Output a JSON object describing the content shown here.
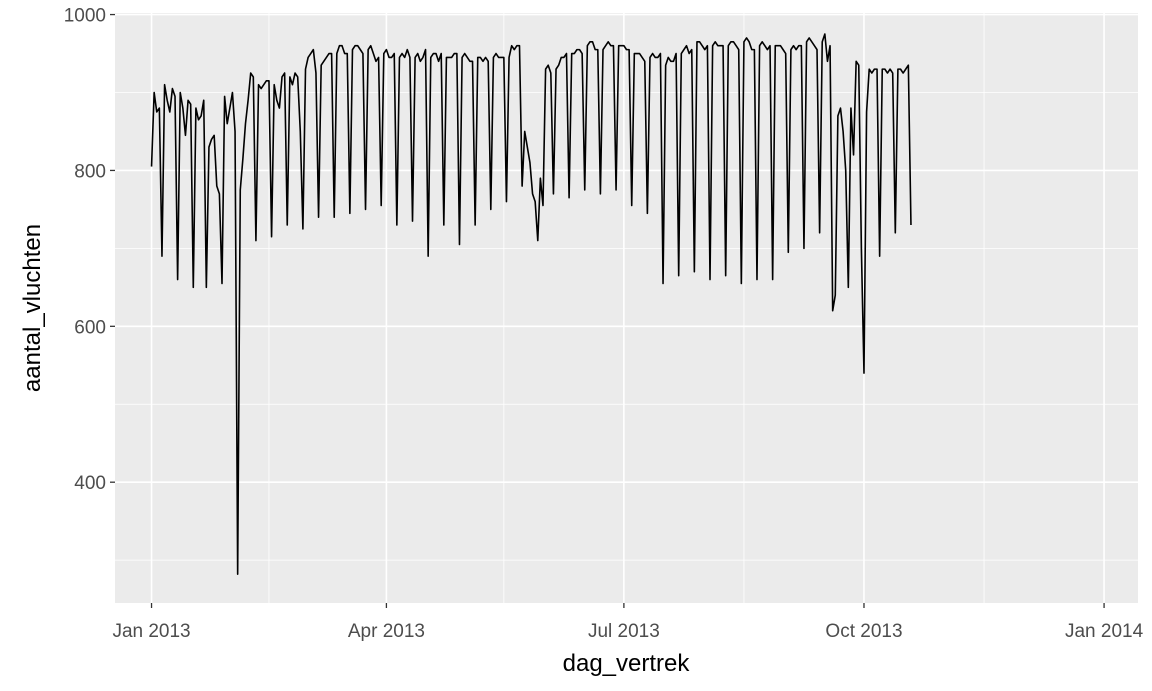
{
  "chart_data": {
    "type": "line",
    "xlabel": "dag_vertrek",
    "ylabel": "aantal_vluchten",
    "x_range": [
      "2012-12-18",
      "2014-01-14"
    ],
    "ylim": [
      245,
      1002
    ],
    "x_ticks": [
      {
        "date": "2013-01-01",
        "label": "Jan 2013"
      },
      {
        "date": "2013-04-01",
        "label": "Apr 2013"
      },
      {
        "date": "2013-07-01",
        "label": "Jul 2013"
      },
      {
        "date": "2013-10-01",
        "label": "Oct 2013"
      },
      {
        "date": "2014-01-01",
        "label": "Jan 2014"
      }
    ],
    "x_minor_ticks": [
      "2013-02-15",
      "2013-05-16",
      "2013-08-16",
      "2013-11-16"
    ],
    "y_ticks": [
      400,
      600,
      800,
      1000
    ],
    "y_minor_ticks": [
      300,
      500,
      700,
      900
    ],
    "series": [
      {
        "color": "#000000",
        "start_date": "2013-01-01",
        "values": [
          805,
          900,
          875,
          880,
          690,
          910,
          890,
          875,
          905,
          895,
          660,
          900,
          880,
          845,
          890,
          885,
          650,
          880,
          865,
          870,
          890,
          650,
          830,
          840,
          845,
          780,
          770,
          655,
          895,
          860,
          880,
          900,
          850,
          282,
          775,
          815,
          860,
          890,
          925,
          920,
          710,
          910,
          905,
          910,
          915,
          915,
          715,
          910,
          890,
          880,
          920,
          925,
          730,
          920,
          910,
          925,
          920,
          850,
          725,
          930,
          945,
          950,
          955,
          925,
          740,
          935,
          940,
          945,
          950,
          950,
          740,
          950,
          960,
          960,
          950,
          950,
          745,
          955,
          960,
          960,
          955,
          950,
          750,
          955,
          960,
          950,
          940,
          945,
          755,
          950,
          955,
          945,
          945,
          950,
          730,
          945,
          950,
          945,
          955,
          945,
          735,
          945,
          950,
          940,
          945,
          955,
          690,
          945,
          950,
          950,
          940,
          950,
          730,
          945,
          945,
          945,
          950,
          950,
          705,
          945,
          950,
          945,
          940,
          940,
          730,
          945,
          945,
          940,
          945,
          940,
          750,
          945,
          950,
          945,
          945,
          945,
          760,
          945,
          960,
          955,
          960,
          960,
          780,
          850,
          830,
          810,
          770,
          760,
          710,
          790,
          755,
          930,
          935,
          925,
          770,
          930,
          935,
          945,
          945,
          950,
          765,
          950,
          950,
          955,
          955,
          950,
          775,
          960,
          965,
          965,
          955,
          955,
          770,
          955,
          960,
          965,
          960,
          960,
          775,
          960,
          960,
          960,
          955,
          955,
          755,
          950,
          950,
          950,
          945,
          940,
          745,
          945,
          950,
          945,
          945,
          950,
          655,
          935,
          945,
          940,
          940,
          950,
          665,
          950,
          955,
          960,
          950,
          955,
          670,
          965,
          965,
          960,
          955,
          960,
          660,
          960,
          965,
          960,
          960,
          960,
          665,
          960,
          965,
          965,
          960,
          955,
          655,
          965,
          970,
          965,
          955,
          955,
          660,
          960,
          965,
          960,
          955,
          960,
          660,
          960,
          960,
          960,
          955,
          950,
          695,
          955,
          960,
          955,
          960,
          960,
          700,
          965,
          970,
          965,
          960,
          955,
          720,
          965,
          975,
          940,
          960,
          620,
          640,
          870,
          880,
          850,
          800,
          650,
          880,
          820,
          940,
          935,
          700,
          540,
          875,
          930,
          925,
          930,
          930,
          690,
          930,
          930,
          925,
          930,
          925,
          720,
          930,
          930,
          925,
          930,
          935,
          730
        ]
      }
    ]
  }
}
